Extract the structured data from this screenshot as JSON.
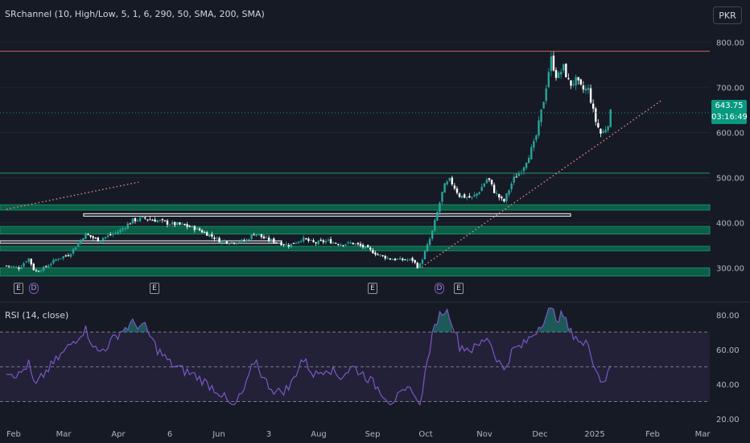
{
  "price_pane": {
    "legend": "SRchannel (10, High/Low, 5, 1, 6, 290, 50, SMA, 200, SMA)",
    "currency": "PKR",
    "last_price": "643.75",
    "countdown": "03:16:49",
    "y_ticks": [
      "800.00",
      "700.00",
      "600.00",
      "500.00",
      "400.00",
      "300.00"
    ]
  },
  "rsi_pane": {
    "legend": "RSI (14, close)",
    "y_ticks": [
      "80.00",
      "60.00",
      "40.00",
      "20.00"
    ]
  },
  "x_axis": {
    "labels": [
      "Feb",
      "Mar",
      "Apr",
      "6",
      "Jun",
      "3",
      "Aug",
      "Sep",
      "Oct",
      "Nov",
      "Dec",
      "2025",
      "Feb",
      "Mar"
    ]
  },
  "events": [
    {
      "glyph": "E",
      "kind": "earnings"
    },
    {
      "glyph": "D",
      "kind": "dividend"
    },
    {
      "glyph": "E",
      "kind": "earnings"
    },
    {
      "glyph": "E",
      "kind": "earnings"
    },
    {
      "glyph": "D",
      "kind": "dividend"
    },
    {
      "glyph": "E",
      "kind": "earnings"
    }
  ],
  "colors": {
    "background": "#161a25",
    "up": "#26a69a",
    "down": "#ffffff",
    "zone": "#0b6b4c",
    "resistance": "#b55b55",
    "trendline": "#e08a82",
    "rsi_line": "#7e57c2",
    "rsi_band": "#7e57c2",
    "last_price": "#089981"
  },
  "chart_data": [
    {
      "type": "candlestick",
      "title": "SRchannel (10, High/Low, 5, 1, 6, 290, 50, SMA, 200, SMA)",
      "ylabel": "PKR",
      "ylim": [
        278,
        822
      ],
      "x": [
        "Feb",
        "Mar",
        "Apr",
        "6",
        "Jun",
        "3",
        "Aug",
        "Sep",
        "Oct",
        "Nov",
        "Dec",
        "2025",
        "Feb",
        "Mar"
      ],
      "close_path": [
        {
          "t": 0.0,
          "v": 305
        },
        {
          "t": 2.0,
          "v": 300
        },
        {
          "t": 3.5,
          "v": 322
        },
        {
          "t": 4.5,
          "v": 292
        },
        {
          "t": 6.0,
          "v": 300
        },
        {
          "t": 8.0,
          "v": 320
        },
        {
          "t": 10.0,
          "v": 330
        },
        {
          "t": 12.5,
          "v": 375
        },
        {
          "t": 14.5,
          "v": 362
        },
        {
          "t": 16.0,
          "v": 370
        },
        {
          "t": 18.0,
          "v": 382
        },
        {
          "t": 20.0,
          "v": 405
        },
        {
          "t": 22.0,
          "v": 410
        },
        {
          "t": 24.0,
          "v": 405
        },
        {
          "t": 26.0,
          "v": 398
        },
        {
          "t": 28.0,
          "v": 395
        },
        {
          "t": 30.0,
          "v": 388
        },
        {
          "t": 32.0,
          "v": 375
        },
        {
          "t": 34.0,
          "v": 360
        },
        {
          "t": 36.0,
          "v": 357
        },
        {
          "t": 38.0,
          "v": 360
        },
        {
          "t": 39.5,
          "v": 378
        },
        {
          "t": 41.0,
          "v": 365
        },
        {
          "t": 43.0,
          "v": 357
        },
        {
          "t": 45.0,
          "v": 350
        },
        {
          "t": 47.0,
          "v": 365
        },
        {
          "t": 49.0,
          "v": 355
        },
        {
          "t": 51.0,
          "v": 360
        },
        {
          "t": 53.0,
          "v": 353
        },
        {
          "t": 55.0,
          "v": 355
        },
        {
          "t": 57.0,
          "v": 345
        },
        {
          "t": 59.0,
          "v": 330
        },
        {
          "t": 61.0,
          "v": 320
        },
        {
          "t": 63.0,
          "v": 318
        },
        {
          "t": 64.5,
          "v": 318
        },
        {
          "t": 65.5,
          "v": 300
        },
        {
          "t": 66.5,
          "v": 335
        },
        {
          "t": 67.5,
          "v": 372
        },
        {
          "t": 68.5,
          "v": 425
        },
        {
          "t": 69.5,
          "v": 480
        },
        {
          "t": 70.5,
          "v": 495
        },
        {
          "t": 72.0,
          "v": 460
        },
        {
          "t": 74.0,
          "v": 455
        },
        {
          "t": 75.0,
          "v": 468
        },
        {
          "t": 76.5,
          "v": 500
        },
        {
          "t": 77.5,
          "v": 470
        },
        {
          "t": 79.0,
          "v": 445
        },
        {
          "t": 80.5,
          "v": 495
        },
        {
          "t": 82.0,
          "v": 520
        },
        {
          "t": 84.0,
          "v": 580
        },
        {
          "t": 85.5,
          "v": 680
        },
        {
          "t": 86.5,
          "v": 765
        },
        {
          "t": 87.5,
          "v": 720
        },
        {
          "t": 88.5,
          "v": 745
        },
        {
          "t": 89.5,
          "v": 705
        },
        {
          "t": 90.5,
          "v": 715
        },
        {
          "t": 91.5,
          "v": 695
        },
        {
          "t": 92.5,
          "v": 695
        },
        {
          "t": 93.5,
          "v": 630
        },
        {
          "t": 94.5,
          "v": 595
        },
        {
          "t": 95.5,
          "v": 615
        },
        {
          "t": 96.0,
          "v": 643.75
        }
      ],
      "lines": {
        "resistance": 780,
        "last_price": 643.75,
        "support": 510,
        "outlined_zone": [
          416,
          420
        ],
        "outlined_zone_2": [
          355,
          360
        ]
      },
      "zones": [
        [
          428,
          440
        ],
        [
          375,
          392
        ],
        [
          338,
          348
        ],
        [
          282,
          300
        ]
      ],
      "trendlines": [
        {
          "from": {
            "t": 0.0,
            "v": 430
          },
          "to": {
            "t": 21.0,
            "v": 490
          }
        },
        {
          "from": {
            "t": 66.0,
            "v": 302
          },
          "to": {
            "t": 104.0,
            "v": 670
          }
        }
      ]
    },
    {
      "type": "line",
      "title": "RSI (14, close)",
      "ylim": [
        20,
        85
      ],
      "bands": {
        "upper": 70,
        "middle": 50,
        "lower": 30
      },
      "series": [
        {
          "name": "RSI (14, close)",
          "points": [
            {
              "t": 0.0,
              "v": 48
            },
            {
              "t": 2.0,
              "v": 45
            },
            {
              "t": 3.5,
              "v": 52
            },
            {
              "t": 4.5,
              "v": 38
            },
            {
              "t": 6.0,
              "v": 46
            },
            {
              "t": 8.0,
              "v": 54
            },
            {
              "t": 10.0,
              "v": 62
            },
            {
              "t": 12.5,
              "v": 72
            },
            {
              "t": 14.5,
              "v": 58
            },
            {
              "t": 16.0,
              "v": 62
            },
            {
              "t": 18.0,
              "v": 70
            },
            {
              "t": 20.0,
              "v": 75
            },
            {
              "t": 22.0,
              "v": 73
            },
            {
              "t": 24.0,
              "v": 60
            },
            {
              "t": 26.0,
              "v": 52
            },
            {
              "t": 28.0,
              "v": 48
            },
            {
              "t": 30.0,
              "v": 45
            },
            {
              "t": 32.0,
              "v": 40
            },
            {
              "t": 34.0,
              "v": 35
            },
            {
              "t": 36.0,
              "v": 26
            },
            {
              "t": 38.0,
              "v": 38
            },
            {
              "t": 39.5,
              "v": 55
            },
            {
              "t": 41.0,
              "v": 42
            },
            {
              "t": 43.0,
              "v": 35
            },
            {
              "t": 45.0,
              "v": 38
            },
            {
              "t": 47.0,
              "v": 55
            },
            {
              "t": 49.0,
              "v": 45
            },
            {
              "t": 51.0,
              "v": 50
            },
            {
              "t": 53.0,
              "v": 44
            },
            {
              "t": 55.0,
              "v": 50
            },
            {
              "t": 57.0,
              "v": 45
            },
            {
              "t": 59.0,
              "v": 38
            },
            {
              "t": 61.0,
              "v": 30
            },
            {
              "t": 63.0,
              "v": 34
            },
            {
              "t": 64.5,
              "v": 38
            },
            {
              "t": 65.5,
              "v": 26
            },
            {
              "t": 66.5,
              "v": 45
            },
            {
              "t": 67.5,
              "v": 65
            },
            {
              "t": 68.5,
              "v": 78
            },
            {
              "t": 69.5,
              "v": 83
            },
            {
              "t": 70.5,
              "v": 80
            },
            {
              "t": 72.0,
              "v": 62
            },
            {
              "t": 74.0,
              "v": 60
            },
            {
              "t": 75.0,
              "v": 62
            },
            {
              "t": 76.5,
              "v": 68
            },
            {
              "t": 77.5,
              "v": 58
            },
            {
              "t": 79.0,
              "v": 48
            },
            {
              "t": 80.5,
              "v": 60
            },
            {
              "t": 82.0,
              "v": 62
            },
            {
              "t": 84.0,
              "v": 70
            },
            {
              "t": 85.5,
              "v": 78
            },
            {
              "t": 86.5,
              "v": 84
            },
            {
              "t": 87.5,
              "v": 78
            },
            {
              "t": 88.5,
              "v": 80
            },
            {
              "t": 89.5,
              "v": 70
            },
            {
              "t": 90.5,
              "v": 68
            },
            {
              "t": 91.5,
              "v": 62
            },
            {
              "t": 92.5,
              "v": 64
            },
            {
              "t": 93.5,
              "v": 50
            },
            {
              "t": 94.5,
              "v": 42
            },
            {
              "t": 95.5,
              "v": 44
            },
            {
              "t": 96.0,
              "v": 51
            }
          ]
        }
      ]
    }
  ]
}
